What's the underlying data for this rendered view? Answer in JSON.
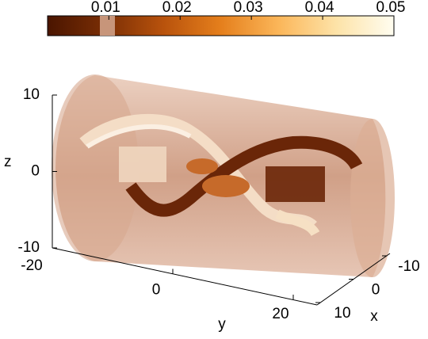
{
  "chart_data": {
    "type": "volume",
    "colorbar": {
      "lim": [
        0.0014,
        0.05
      ],
      "ticks": [
        0.01,
        0.02,
        0.03,
        0.04,
        0.05
      ],
      "colormap": [
        "#4a1500",
        "#7a2e05",
        "#b8520c",
        "#e57f1c",
        "#fbb659",
        "#fde3a8",
        "#fffdf0"
      ]
    },
    "zlim": [
      -10,
      10
    ],
    "zticks": [
      -10,
      0,
      10
    ],
    "z_label": "z",
    "ylim": [
      -20,
      20
    ],
    "yticks": [
      -20,
      0,
      20
    ],
    "y_label": "y",
    "xlim": [
      -10,
      10
    ],
    "xticks": [
      -10,
      0,
      10
    ],
    "x_label": "x"
  }
}
